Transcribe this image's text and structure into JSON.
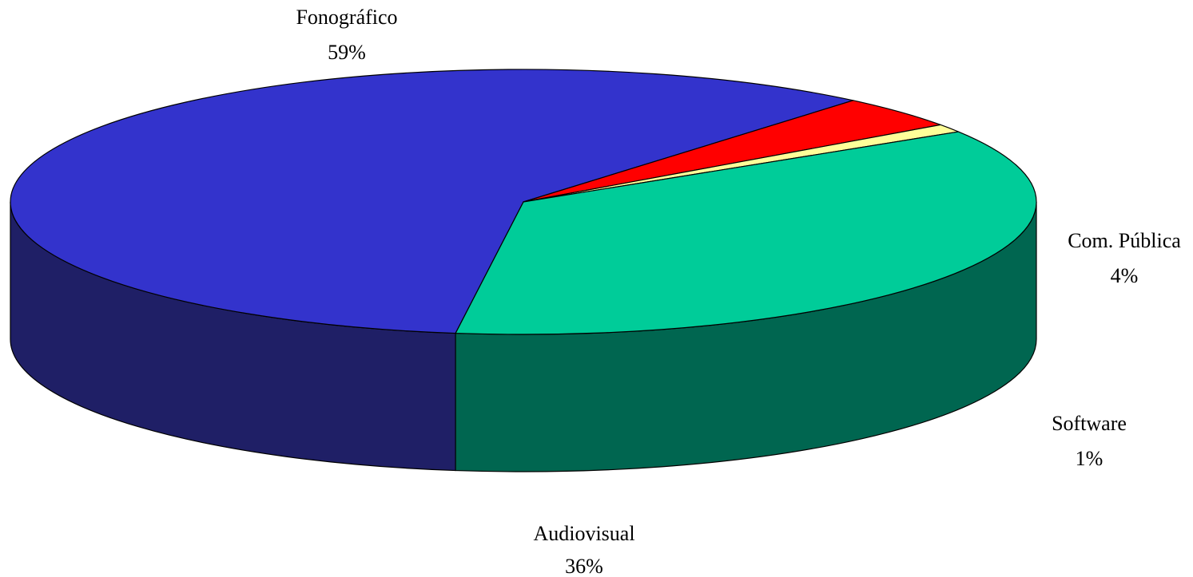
{
  "chart_data": {
    "type": "pie",
    "title": "",
    "categories": [
      "Fonográfico",
      "Com. Pública",
      "Software",
      "Audiovisual"
    ],
    "values": [
      59,
      4,
      1,
      36
    ],
    "value_labels": [
      "59%",
      "4%",
      "1%",
      "36%"
    ],
    "colors": {
      "top": [
        "#3333CC",
        "#FF0000",
        "#FFFF99",
        "#00CC99"
      ],
      "side": [
        "#1F1F66",
        "#800000",
        "#808050",
        "#006650"
      ]
    },
    "style": "3d-exploded-none",
    "legend": "none",
    "labels_placement": "outside"
  }
}
